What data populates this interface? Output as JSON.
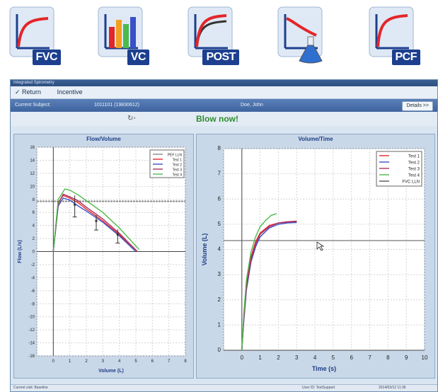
{
  "mode_icons": [
    {
      "label": "FVC",
      "type": "curve"
    },
    {
      "label": "VC",
      "type": "bars"
    },
    {
      "label": "POST",
      "type": "curve-double"
    },
    {
      "label": "",
      "type": "flask"
    },
    {
      "label": "PCF",
      "type": "curve"
    }
  ],
  "colors": {
    "accent": "#1d3f8f",
    "curve": "#e3262a",
    "blow_now": "#2e8b2e",
    "lln": "#555555"
  },
  "window": {
    "title": "Integrated Spirometry",
    "menu": {
      "return_label": "Return",
      "incentive_label": "Incentive"
    },
    "subject": {
      "label": "Current Subject:",
      "id": "1011101 (19830612)",
      "name": "Doe, John"
    },
    "details_label": "Details >>",
    "status_message": "Blow now!",
    "footer": {
      "left": "Current visit: Baseline",
      "user": "User ID: TestSupport",
      "datetime": "2014/03/12 11:36"
    }
  },
  "flow_volume": {
    "title": "Flow/Volume",
    "xlabel": "Volume (L)",
    "ylabel": "Flow (L/s)",
    "x_ticks": [
      "0",
      "1",
      "2",
      "3",
      "4",
      "5",
      "6",
      "7",
      "8"
    ],
    "y_ticks": [
      "16",
      "14",
      "12",
      "10",
      "8",
      "6",
      "4",
      "2",
      "0",
      "-2",
      "-4",
      "-6",
      "-8",
      "-10",
      "-12",
      "-14",
      "-16"
    ],
    "legend": [
      "PEF LLN",
      "Test 1",
      "Test 2",
      "Test 3",
      "Test 4"
    ]
  },
  "volume_time": {
    "title": "Volume/Time",
    "xlabel": "Time (s)",
    "ylabel": "Volume (L)",
    "x_ticks": [
      "0",
      "1",
      "2",
      "3",
      "4",
      "5",
      "6",
      "7",
      "8",
      "9",
      "10"
    ],
    "y_ticks": [
      "8",
      "7",
      "6",
      "5",
      "4",
      "3",
      "2",
      "1",
      "0"
    ],
    "legend": [
      "Test 1",
      "Test 2",
      "Test 3",
      "Test 4",
      "FVC LLN"
    ]
  },
  "chart_data": [
    {
      "type": "line",
      "title": "Flow/Volume",
      "xlabel": "Volume (L)",
      "ylabel": "Flow (L/s)",
      "xlim": [
        -1,
        8
      ],
      "ylim": [
        -16,
        16
      ],
      "grid": true,
      "legend_position": "top-right",
      "reference_line": {
        "name": "PEF LLN",
        "y": 7.7
      },
      "series": [
        {
          "name": "Test 1",
          "color": "#e3262a",
          "x": [
            0,
            0.3,
            0.6,
            1.0,
            1.5,
            2.0,
            3.0,
            4.0,
            5.0
          ],
          "y": [
            0,
            7.5,
            8.6,
            8.2,
            7.5,
            6.5,
            4.7,
            2.6,
            0
          ]
        },
        {
          "name": "Test 2",
          "color": "#3a4fc8",
          "x": [
            0,
            0.3,
            0.6,
            1.0,
            1.5,
            2.0,
            3.0,
            4.0,
            5.0
          ],
          "y": [
            0,
            7.0,
            8.2,
            7.9,
            7.0,
            6.2,
            4.5,
            2.4,
            0
          ]
        },
        {
          "name": "Test 3",
          "color": "#a8325e",
          "x": [
            0,
            0.3,
            0.6,
            1.0,
            1.5,
            2.0,
            3.0,
            4.0,
            5.1
          ],
          "y": [
            0,
            7.3,
            8.8,
            8.4,
            7.8,
            6.8,
            5.0,
            2.8,
            0
          ]
        },
        {
          "name": "Test 4",
          "color": "#4cbb4c",
          "x": [
            0,
            0.3,
            0.7,
            1.0,
            1.5,
            2.0,
            3.0,
            4.0,
            5.2
          ],
          "y": [
            0,
            8.0,
            9.6,
            9.4,
            8.7,
            7.8,
            6.0,
            3.6,
            0.3
          ]
        }
      ],
      "error_bars": [
        {
          "x": 1.3,
          "y": 7.2,
          "low": 5.3,
          "high": 8.6
        },
        {
          "x": 2.6,
          "y": 4.7,
          "low": 3.3,
          "high": 5.6
        },
        {
          "x": 3.9,
          "y": 2.6,
          "low": 1.3,
          "high": 3.4
        }
      ]
    },
    {
      "type": "line",
      "title": "Volume/Time",
      "xlabel": "Time (s)",
      "ylabel": "Volume (L)",
      "xlim": [
        -1,
        10
      ],
      "ylim": [
        0,
        8
      ],
      "grid": true,
      "legend_position": "top-right",
      "reference_line": {
        "name": "FVC LLN",
        "y": 4.35
      },
      "series": [
        {
          "name": "Test 1",
          "color": "#e3262a",
          "x": [
            0,
            0.1,
            0.25,
            0.5,
            0.75,
            1.0,
            1.5,
            2.0,
            2.5,
            3.0
          ],
          "y": [
            0,
            1.2,
            2.6,
            3.7,
            4.3,
            4.65,
            4.95,
            5.05,
            5.08,
            5.1
          ]
        },
        {
          "name": "Test 2",
          "color": "#3a4fc8",
          "x": [
            0,
            0.1,
            0.25,
            0.5,
            0.75,
            1.0,
            1.5,
            2.0,
            2.5,
            3.0
          ],
          "y": [
            0,
            1.1,
            2.4,
            3.5,
            4.1,
            4.5,
            4.85,
            5.0,
            5.05,
            5.07
          ]
        },
        {
          "name": "Test 3",
          "color": "#a8325e",
          "x": [
            0,
            0.1,
            0.25,
            0.5,
            0.75,
            1.0,
            1.5,
            2.0,
            2.5,
            3.0
          ],
          "y": [
            0,
            1.2,
            2.5,
            3.6,
            4.2,
            4.6,
            4.9,
            5.05,
            5.1,
            5.12
          ]
        },
        {
          "name": "Test 4",
          "color": "#4cbb4c",
          "x": [
            0,
            0.1,
            0.25,
            0.5,
            0.75,
            1.0,
            1.3,
            1.6,
            1.9
          ],
          "y": [
            0,
            1.4,
            2.8,
            3.9,
            4.5,
            4.9,
            5.15,
            5.35,
            5.42
          ]
        }
      ]
    }
  ]
}
